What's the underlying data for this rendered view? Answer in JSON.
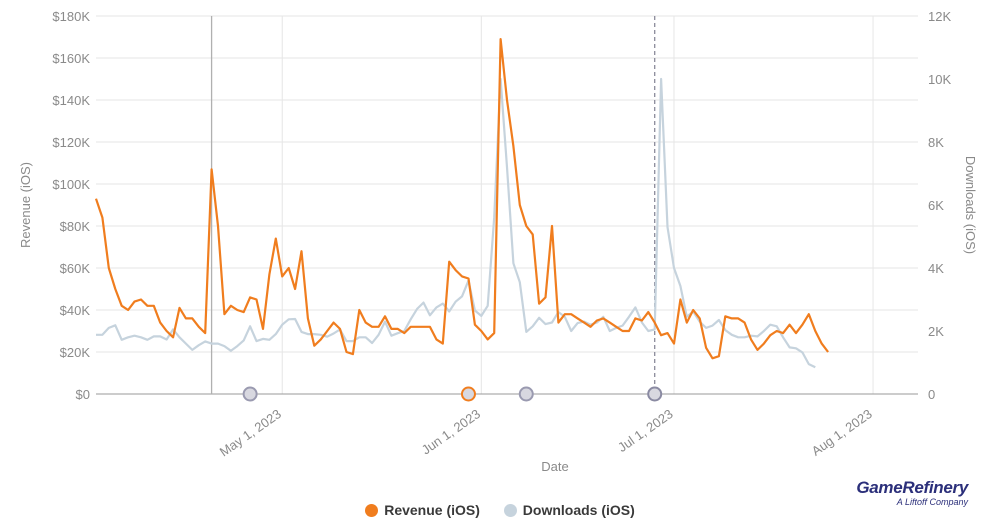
{
  "chart_data": {
    "type": "line",
    "xlabel": "Date",
    "y_left_label": "Revenue (iOS)",
    "y_right_label": "Downloads (iOS)",
    "x_start": "2023-04-02",
    "x_end": "2023-08-08",
    "x_ticks": [
      {
        "date": "2023-05-01",
        "label": "May 1, 2023"
      },
      {
        "date": "2023-06-01",
        "label": "Jun 1, 2023"
      },
      {
        "date": "2023-07-01",
        "label": "Jul 1, 2023"
      },
      {
        "date": "2023-08-01",
        "label": "Aug 1, 2023"
      }
    ],
    "y_left": {
      "min": 0,
      "max": 180000,
      "ticks": [
        "$0",
        "$20K",
        "$40K",
        "$60K",
        "$80K",
        "$100K",
        "$120K",
        "$140K",
        "$160K",
        "$180K"
      ]
    },
    "y_right": {
      "min": 0,
      "max": 12000,
      "ticks": [
        "0",
        "2K",
        "4K",
        "6K",
        "8K",
        "10K",
        "12K"
      ]
    },
    "grid": true,
    "legend_position": "bottom-center",
    "series": [
      {
        "name": "Revenue (iOS)",
        "axis": "left",
        "color": "#f07d1e",
        "points": [
          [
            "2023-04-02",
            93000
          ],
          [
            "2023-04-03",
            84000
          ],
          [
            "2023-04-04",
            60000
          ],
          [
            "2023-04-05",
            50000
          ],
          [
            "2023-04-06",
            42000
          ],
          [
            "2023-04-07",
            40000
          ],
          [
            "2023-04-08",
            44000
          ],
          [
            "2023-04-09",
            45000
          ],
          [
            "2023-04-10",
            42000
          ],
          [
            "2023-04-11",
            42000
          ],
          [
            "2023-04-12",
            34000
          ],
          [
            "2023-04-13",
            30000
          ],
          [
            "2023-04-14",
            27000
          ],
          [
            "2023-04-15",
            41000
          ],
          [
            "2023-04-16",
            36000
          ],
          [
            "2023-04-17",
            36000
          ],
          [
            "2023-04-18",
            32000
          ],
          [
            "2023-04-19",
            29000
          ],
          [
            "2023-04-20",
            107000
          ],
          [
            "2023-04-21",
            80000
          ],
          [
            "2023-04-22",
            38000
          ],
          [
            "2023-04-23",
            42000
          ],
          [
            "2023-04-24",
            40000
          ],
          [
            "2023-04-25",
            39000
          ],
          [
            "2023-04-26",
            46000
          ],
          [
            "2023-04-27",
            45000
          ],
          [
            "2023-04-28",
            31000
          ],
          [
            "2023-04-29",
            57000
          ],
          [
            "2023-04-30",
            74000
          ],
          [
            "2023-05-01",
            56000
          ],
          [
            "2023-05-02",
            60000
          ],
          [
            "2023-05-03",
            50000
          ],
          [
            "2023-05-04",
            68000
          ],
          [
            "2023-05-05",
            36000
          ],
          [
            "2023-05-06",
            23000
          ],
          [
            "2023-05-07",
            26000
          ],
          [
            "2023-05-08",
            30000
          ],
          [
            "2023-05-09",
            34000
          ],
          [
            "2023-05-10",
            31000
          ],
          [
            "2023-05-11",
            20000
          ],
          [
            "2023-05-12",
            19000
          ],
          [
            "2023-05-13",
            40000
          ],
          [
            "2023-05-14",
            34000
          ],
          [
            "2023-05-15",
            32000
          ],
          [
            "2023-05-16",
            32000
          ],
          [
            "2023-05-17",
            37000
          ],
          [
            "2023-05-18",
            31000
          ],
          [
            "2023-05-19",
            31000
          ],
          [
            "2023-05-20",
            29000
          ],
          [
            "2023-05-21",
            32000
          ],
          [
            "2023-05-22",
            32000
          ],
          [
            "2023-05-23",
            32000
          ],
          [
            "2023-05-24",
            32000
          ],
          [
            "2023-05-25",
            26000
          ],
          [
            "2023-05-26",
            24000
          ],
          [
            "2023-05-27",
            63000
          ],
          [
            "2023-05-28",
            59000
          ],
          [
            "2023-05-29",
            56000
          ],
          [
            "2023-05-30",
            55000
          ],
          [
            "2023-05-31",
            33000
          ],
          [
            "2023-06-01",
            30000
          ],
          [
            "2023-06-02",
            26000
          ],
          [
            "2023-06-03",
            29000
          ],
          [
            "2023-06-04",
            169000
          ],
          [
            "2023-06-05",
            140000
          ],
          [
            "2023-06-06",
            118000
          ],
          [
            "2023-06-07",
            90000
          ],
          [
            "2023-06-08",
            80000
          ],
          [
            "2023-06-09",
            76000
          ],
          [
            "2023-06-10",
            43000
          ],
          [
            "2023-06-11",
            46000
          ],
          [
            "2023-06-12",
            80000
          ],
          [
            "2023-06-13",
            34000
          ],
          [
            "2023-06-14",
            38000
          ],
          [
            "2023-06-15",
            38000
          ],
          [
            "2023-06-16",
            36000
          ],
          [
            "2023-06-17",
            34000
          ],
          [
            "2023-06-18",
            32000
          ],
          [
            "2023-06-19",
            35000
          ],
          [
            "2023-06-20",
            36000
          ],
          [
            "2023-06-21",
            34000
          ],
          [
            "2023-06-22",
            32000
          ],
          [
            "2023-06-23",
            30000
          ],
          [
            "2023-06-24",
            30000
          ],
          [
            "2023-06-25",
            36000
          ],
          [
            "2023-06-26",
            35000
          ],
          [
            "2023-06-27",
            39000
          ],
          [
            "2023-06-28",
            34000
          ],
          [
            "2023-06-29",
            28000
          ],
          [
            "2023-06-30",
            29000
          ],
          [
            "2023-07-01",
            24000
          ],
          [
            "2023-07-02",
            45000
          ],
          [
            "2023-07-03",
            34000
          ],
          [
            "2023-07-04",
            40000
          ],
          [
            "2023-07-05",
            36000
          ],
          [
            "2023-07-06",
            22000
          ],
          [
            "2023-07-07",
            17000
          ],
          [
            "2023-07-08",
            18000
          ],
          [
            "2023-07-09",
            37000
          ],
          [
            "2023-07-10",
            36000
          ],
          [
            "2023-07-11",
            36000
          ],
          [
            "2023-07-12",
            34000
          ],
          [
            "2023-07-13",
            26000
          ],
          [
            "2023-07-14",
            21000
          ],
          [
            "2023-07-15",
            24000
          ],
          [
            "2023-07-16",
            28000
          ],
          [
            "2023-07-17",
            30000
          ],
          [
            "2023-07-18",
            29000
          ],
          [
            "2023-07-19",
            33000
          ],
          [
            "2023-07-20",
            29000
          ],
          [
            "2023-07-21",
            33000
          ],
          [
            "2023-07-22",
            38000
          ],
          [
            "2023-07-23",
            30000
          ],
          [
            "2023-07-24",
            24000
          ],
          [
            "2023-07-25",
            20000
          ]
        ]
      },
      {
        "name": "Downloads (iOS)",
        "axis": "right",
        "color": "#c6d3dd",
        "points": [
          [
            "2023-04-02",
            1880
          ],
          [
            "2023-04-03",
            1880
          ],
          [
            "2023-04-04",
            2100
          ],
          [
            "2023-04-05",
            2180
          ],
          [
            "2023-04-06",
            1720
          ],
          [
            "2023-04-07",
            1800
          ],
          [
            "2023-04-08",
            1850
          ],
          [
            "2023-04-09",
            1800
          ],
          [
            "2023-04-10",
            1720
          ],
          [
            "2023-04-11",
            1830
          ],
          [
            "2023-04-12",
            1830
          ],
          [
            "2023-04-13",
            1730
          ],
          [
            "2023-04-14",
            2050
          ],
          [
            "2023-04-15",
            1800
          ],
          [
            "2023-04-16",
            1600
          ],
          [
            "2023-04-17",
            1400
          ],
          [
            "2023-04-18",
            1550
          ],
          [
            "2023-04-19",
            1670
          ],
          [
            "2023-04-20",
            1600
          ],
          [
            "2023-04-21",
            1600
          ],
          [
            "2023-04-22",
            1520
          ],
          [
            "2023-04-23",
            1370
          ],
          [
            "2023-04-24",
            1520
          ],
          [
            "2023-04-25",
            1700
          ],
          [
            "2023-04-26",
            2150
          ],
          [
            "2023-04-27",
            1680
          ],
          [
            "2023-04-28",
            1750
          ],
          [
            "2023-04-29",
            1720
          ],
          [
            "2023-04-30",
            1900
          ],
          [
            "2023-05-01",
            2200
          ],
          [
            "2023-05-02",
            2370
          ],
          [
            "2023-05-03",
            2380
          ],
          [
            "2023-05-04",
            1970
          ],
          [
            "2023-05-05",
            1900
          ],
          [
            "2023-05-06",
            1900
          ],
          [
            "2023-05-07",
            1880
          ],
          [
            "2023-05-08",
            1820
          ],
          [
            "2023-05-09",
            1920
          ],
          [
            "2023-05-10",
            2050
          ],
          [
            "2023-05-11",
            1680
          ],
          [
            "2023-05-12",
            1680
          ],
          [
            "2023-05-13",
            1800
          ],
          [
            "2023-05-14",
            1800
          ],
          [
            "2023-05-15",
            1620
          ],
          [
            "2023-05-16",
            1880
          ],
          [
            "2023-05-17",
            2300
          ],
          [
            "2023-05-18",
            1850
          ],
          [
            "2023-05-19",
            1930
          ],
          [
            "2023-05-20",
            2000
          ],
          [
            "2023-05-21",
            2370
          ],
          [
            "2023-05-22",
            2700
          ],
          [
            "2023-05-23",
            2900
          ],
          [
            "2023-05-24",
            2500
          ],
          [
            "2023-05-25",
            2750
          ],
          [
            "2023-05-26",
            2870
          ],
          [
            "2023-05-27",
            2620
          ],
          [
            "2023-05-28",
            2930
          ],
          [
            "2023-05-29",
            3100
          ],
          [
            "2023-05-30",
            3600
          ],
          [
            "2023-05-31",
            2650
          ],
          [
            "2023-06-01",
            2480
          ],
          [
            "2023-06-02",
            2800
          ],
          [
            "2023-06-03",
            5600
          ],
          [
            "2023-06-04",
            10000
          ],
          [
            "2023-06-05",
            7200
          ],
          [
            "2023-06-06",
            4150
          ],
          [
            "2023-06-07",
            3550
          ],
          [
            "2023-06-08",
            1970
          ],
          [
            "2023-06-09",
            2150
          ],
          [
            "2023-06-10",
            2420
          ],
          [
            "2023-06-11",
            2220
          ],
          [
            "2023-06-12",
            2270
          ],
          [
            "2023-06-13",
            2600
          ],
          [
            "2023-06-14",
            2450
          ],
          [
            "2023-06-15",
            2000
          ],
          [
            "2023-06-16",
            2250
          ],
          [
            "2023-06-17",
            2300
          ],
          [
            "2023-06-18",
            2200
          ],
          [
            "2023-06-19",
            2270
          ],
          [
            "2023-06-20",
            2450
          ],
          [
            "2023-06-21",
            2000
          ],
          [
            "2023-06-22",
            2100
          ],
          [
            "2023-06-23",
            2170
          ],
          [
            "2023-06-24",
            2450
          ],
          [
            "2023-06-25",
            2750
          ],
          [
            "2023-06-26",
            2270
          ],
          [
            "2023-06-27",
            2000
          ],
          [
            "2023-06-28",
            2050
          ],
          [
            "2023-06-29",
            10000
          ],
          [
            "2023-06-30",
            5300
          ],
          [
            "2023-07-01",
            4000
          ],
          [
            "2023-07-02",
            3430
          ],
          [
            "2023-07-03",
            2450
          ],
          [
            "2023-07-04",
            2620
          ],
          [
            "2023-07-05",
            2300
          ],
          [
            "2023-07-06",
            2100
          ],
          [
            "2023-07-07",
            2170
          ],
          [
            "2023-07-08",
            2350
          ],
          [
            "2023-07-09",
            2030
          ],
          [
            "2023-07-10",
            1880
          ],
          [
            "2023-07-11",
            1800
          ],
          [
            "2023-07-12",
            1800
          ],
          [
            "2023-07-13",
            1850
          ],
          [
            "2023-07-14",
            1830
          ],
          [
            "2023-07-15",
            2000
          ],
          [
            "2023-07-16",
            2200
          ],
          [
            "2023-07-17",
            2150
          ],
          [
            "2023-07-18",
            1800
          ],
          [
            "2023-07-19",
            1480
          ],
          [
            "2023-07-20",
            1450
          ],
          [
            "2023-07-21",
            1320
          ],
          [
            "2023-07-22",
            950
          ],
          [
            "2023-07-23",
            850
          ]
        ]
      }
    ],
    "annotations": [
      {
        "date": "2023-04-20",
        "kind": "vertical-line-solid"
      },
      {
        "date": "2023-06-28",
        "kind": "vertical-line-dashed"
      },
      {
        "date": "2023-04-26",
        "kind": "marker",
        "color": "#9a9ab0"
      },
      {
        "date": "2023-05-30",
        "kind": "marker",
        "color": "#f07d1e"
      },
      {
        "date": "2023-06-08",
        "kind": "marker",
        "color": "#9a9ab0"
      },
      {
        "date": "2023-06-28",
        "kind": "marker",
        "color": "#8a8aa2"
      }
    ]
  },
  "legend": {
    "revenue_label": "Revenue (iOS)",
    "downloads_label": "Downloads (iOS)",
    "revenue_color": "#f07d1e",
    "downloads_color": "#c6d3dd"
  },
  "brand": {
    "name": "GameRefinery",
    "subtitle": "A Liftoff Company"
  }
}
